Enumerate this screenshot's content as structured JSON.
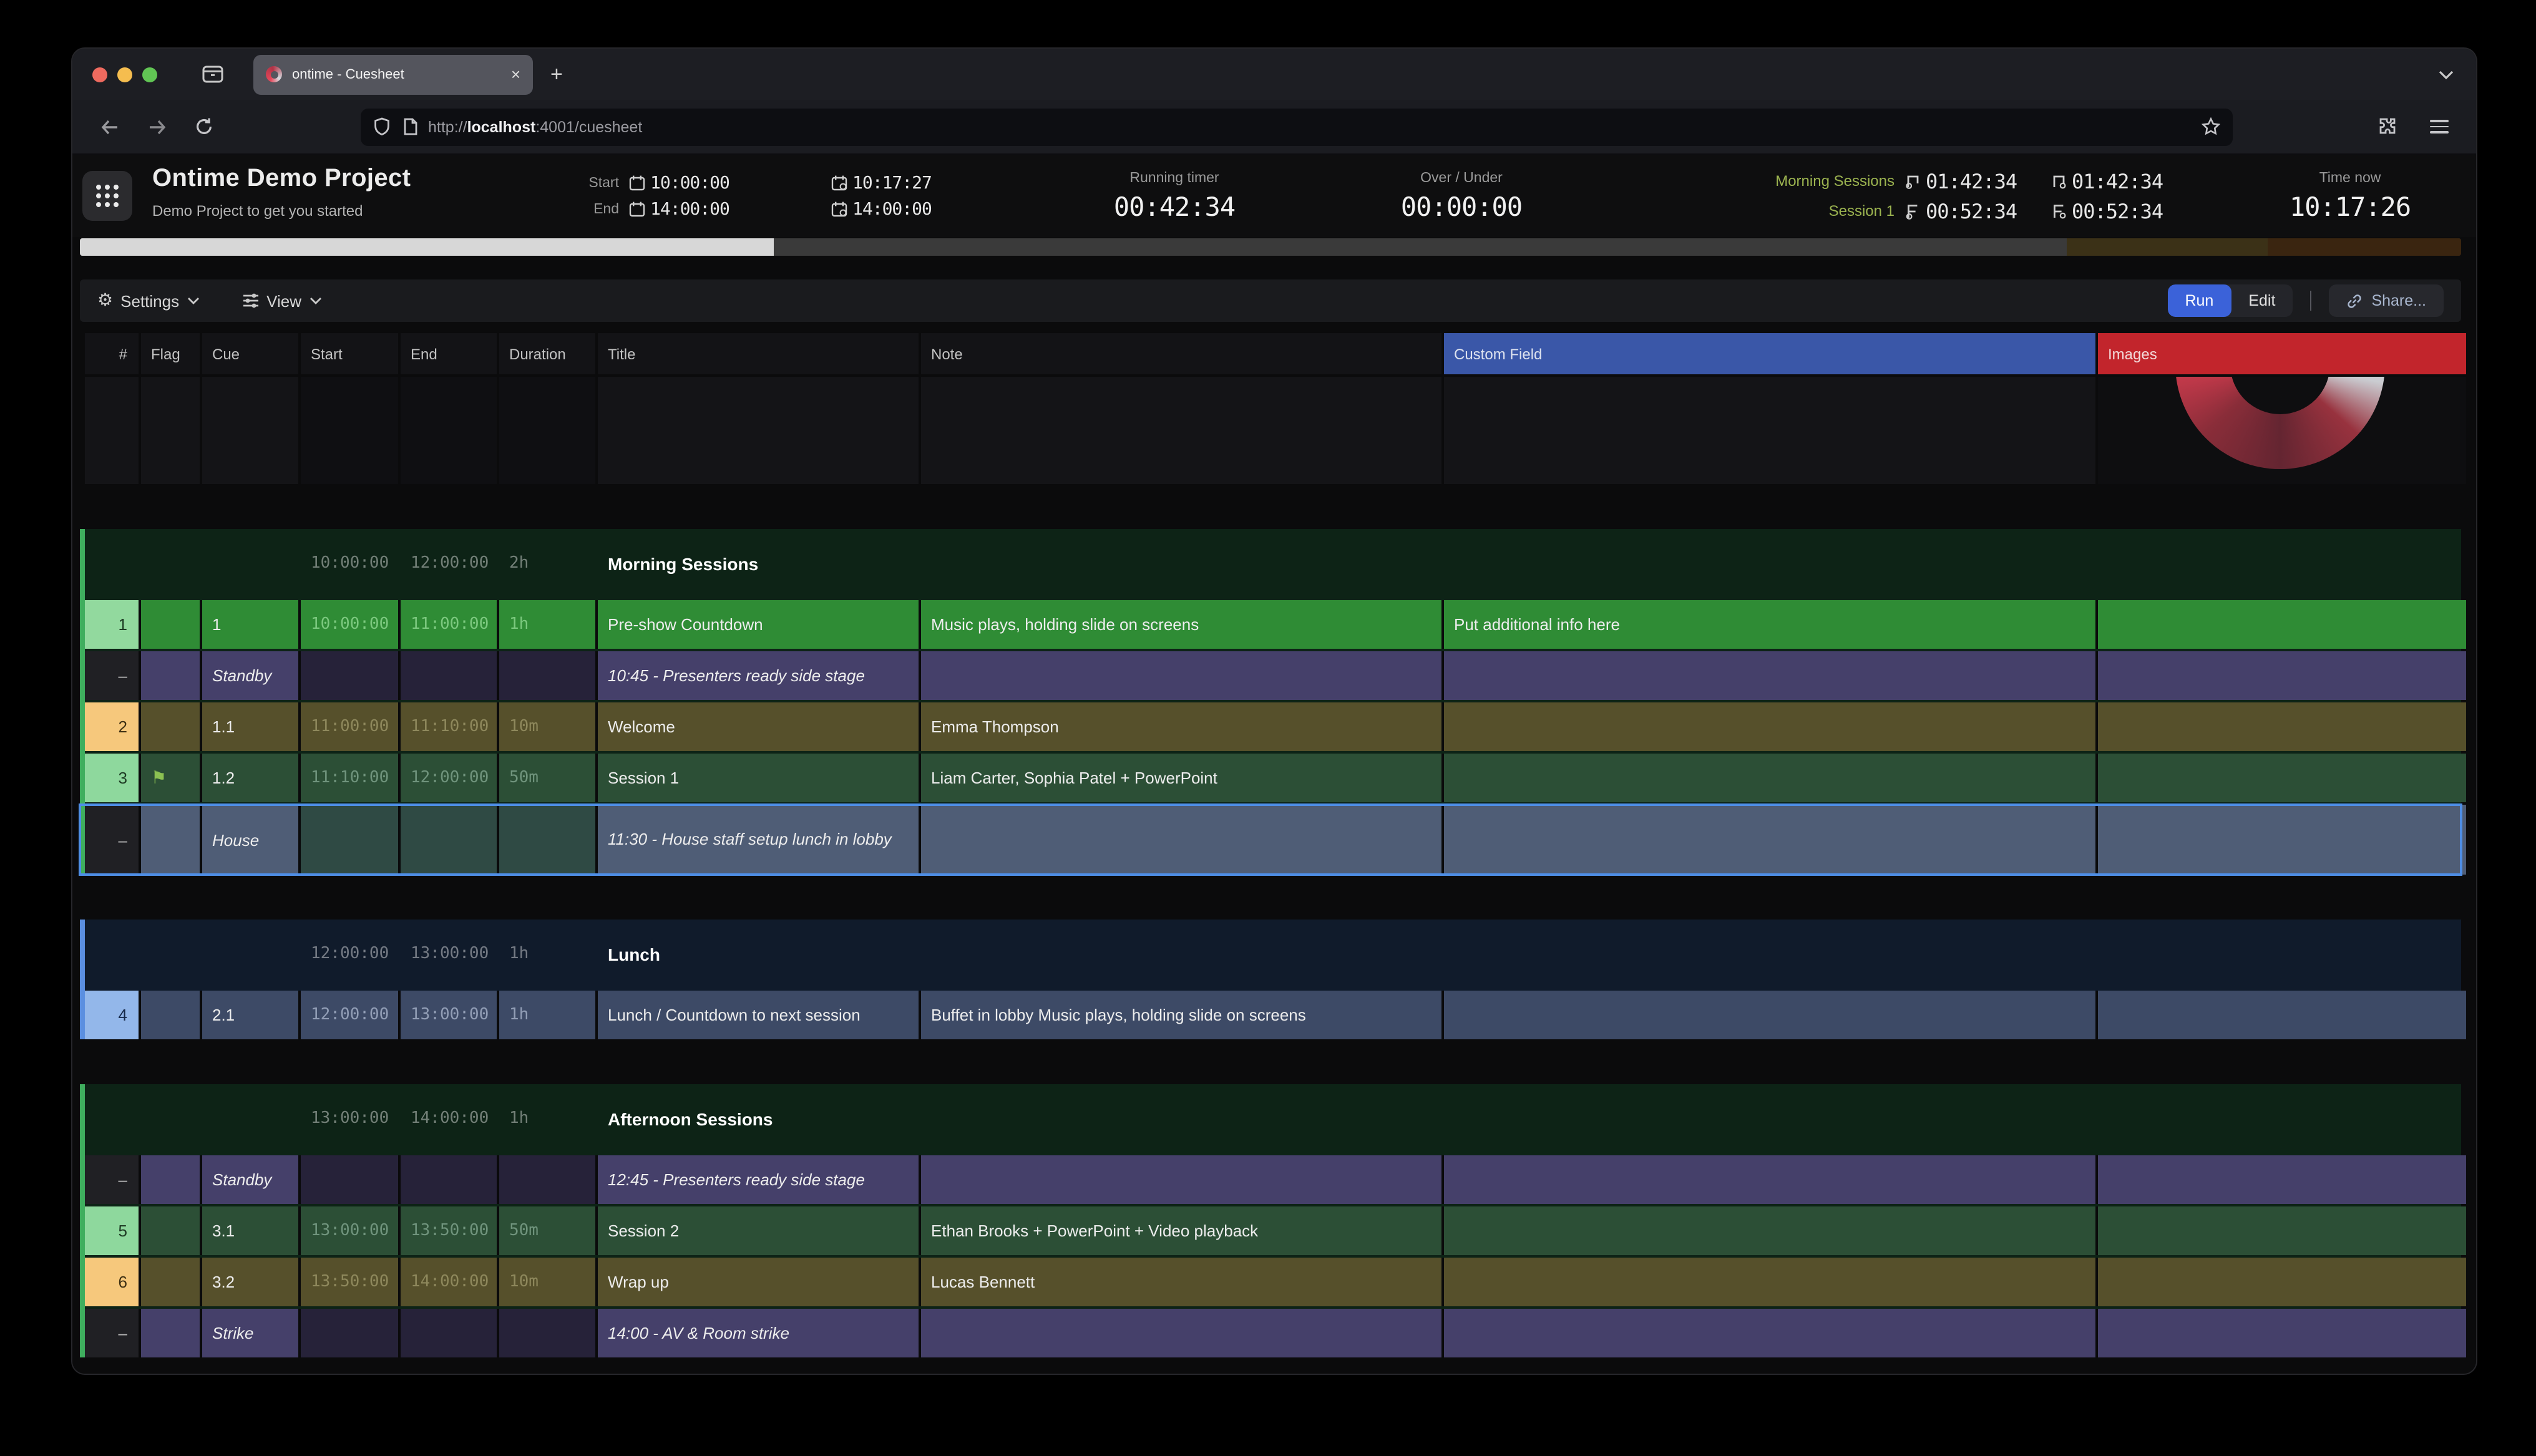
{
  "browser": {
    "tab_title": "ontime - Cuesheet",
    "new_tab_label": "+",
    "close_label": "×",
    "url_prefix": "http://",
    "url_host": "localhost",
    "url_path": ":4001/cuesheet"
  },
  "header": {
    "project_title": "Ontime Demo Project",
    "project_subtitle": "Demo Project to get you started",
    "start_label": "Start",
    "start_time": "10:00:00",
    "end_label": "End",
    "end_time": "14:00:00",
    "projected_start": "10:17:27",
    "projected_end": "14:00:00",
    "running_timer_label": "Running timer",
    "running_timer": "00:42:34",
    "over_under_label": "Over / Under",
    "over_under": "00:00:00",
    "block_label": "Morning Sessions",
    "block_expected_end": "01:42:34",
    "event_label": "Session 1",
    "event_expected_end": "00:52:34",
    "block_expected_end2": "01:42:34",
    "event_expected_end2": "00:52:34",
    "time_now_label": "Time now",
    "time_now": "10:17:26",
    "accent_green": "#9cb450"
  },
  "progress": {
    "fill_pct": 29,
    "colors": {
      "fill": "#d7d7d7",
      "track": "#3a3a3a",
      "olive": "#3b3117",
      "brown": "#3a2510"
    }
  },
  "toolbar": {
    "settings_label": "Settings",
    "view_label": "View",
    "run_label": "Run",
    "edit_label": "Edit",
    "share_label": "Share...",
    "run_color": "#3b62d9"
  },
  "table": {
    "columns": [
      "#",
      "Flag",
      "Cue",
      "Start",
      "End",
      "Duration",
      "Title",
      "Note",
      "Custom Field",
      "Images"
    ],
    "custom_field_color": "#3a57a8",
    "images_color": "#c2252c",
    "blocks": [
      {
        "theme": "green",
        "accent": "#3fae5e",
        "header": {
          "start": "10:00:00",
          "end": "12:00:00",
          "duration": "2h",
          "title": "Morning Sessions"
        },
        "rows": [
          {
            "style": "run",
            "chip": "g1",
            "num": "1",
            "cue": "1",
            "start": "10:00:00",
            "end": "11:00:00",
            "duration": "1h",
            "title": "Pre-show Countdown",
            "note": "Music plays, holding slide on screens",
            "custom": "Put additional info here"
          },
          {
            "style": "standby",
            "num": "–",
            "cue": "Standby",
            "start": "",
            "end": "",
            "duration": "",
            "title": "10:45 - Presenters ready side stage",
            "note": "",
            "custom": ""
          },
          {
            "style": "olive",
            "chip": "or",
            "num": "2",
            "cue": "1.1",
            "start": "11:00:00",
            "end": "11:10:00",
            "duration": "10m",
            "title": "Welcome",
            "note": "Emma Thompson",
            "custom": ""
          },
          {
            "style": "green",
            "chip": "gr",
            "num": "3",
            "flag": true,
            "cue": "1.2",
            "start": "11:10:00",
            "end": "12:00:00",
            "duration": "50m",
            "title": "Session 1",
            "note": "Liam Carter, Sophia Patel + PowerPoint",
            "custom": ""
          },
          {
            "style": "selected",
            "num": "–",
            "cue": "House",
            "start": "",
            "end": "",
            "duration": "",
            "title": "11:30 - House staff setup lunch in lobby",
            "note": "",
            "custom": ""
          }
        ]
      },
      {
        "theme": "blue",
        "accent": "#5b8fe0",
        "header": {
          "start": "12:00:00",
          "end": "13:00:00",
          "duration": "1h",
          "title": "Lunch"
        },
        "rows": [
          {
            "style": "lunch",
            "chip": "bl",
            "num": "4",
            "cue": "2.1",
            "start": "12:00:00",
            "end": "13:00:00",
            "duration": "1h",
            "title": "Lunch / Countdown to next session",
            "note": "Buffet in lobby Music plays, holding slide on screens",
            "custom": ""
          }
        ]
      },
      {
        "theme": "green",
        "accent": "#3fae5e",
        "header": {
          "start": "13:00:00",
          "end": "14:00:00",
          "duration": "1h",
          "title": "Afternoon Sessions"
        },
        "rows": [
          {
            "style": "standby",
            "num": "–",
            "cue": "Standby",
            "start": "",
            "end": "",
            "duration": "",
            "title": "12:45 - Presenters ready side stage",
            "note": "",
            "custom": ""
          },
          {
            "style": "green",
            "chip": "gr",
            "num": "5",
            "cue": "3.1",
            "start": "13:00:00",
            "end": "13:50:00",
            "duration": "50m",
            "title": "Session 2",
            "note": "Ethan Brooks + PowerPoint + Video playback",
            "custom": ""
          },
          {
            "style": "olive",
            "chip": "or",
            "num": "6",
            "cue": "3.2",
            "start": "13:50:00",
            "end": "14:00:00",
            "duration": "10m",
            "title": "Wrap up",
            "note": "Lucas Bennett",
            "custom": ""
          },
          {
            "style": "standby",
            "num": "–",
            "cue": "Strike",
            "start": "",
            "end": "",
            "duration": "",
            "title": "14:00 - AV & Room strike",
            "note": "",
            "custom": ""
          }
        ]
      }
    ]
  }
}
